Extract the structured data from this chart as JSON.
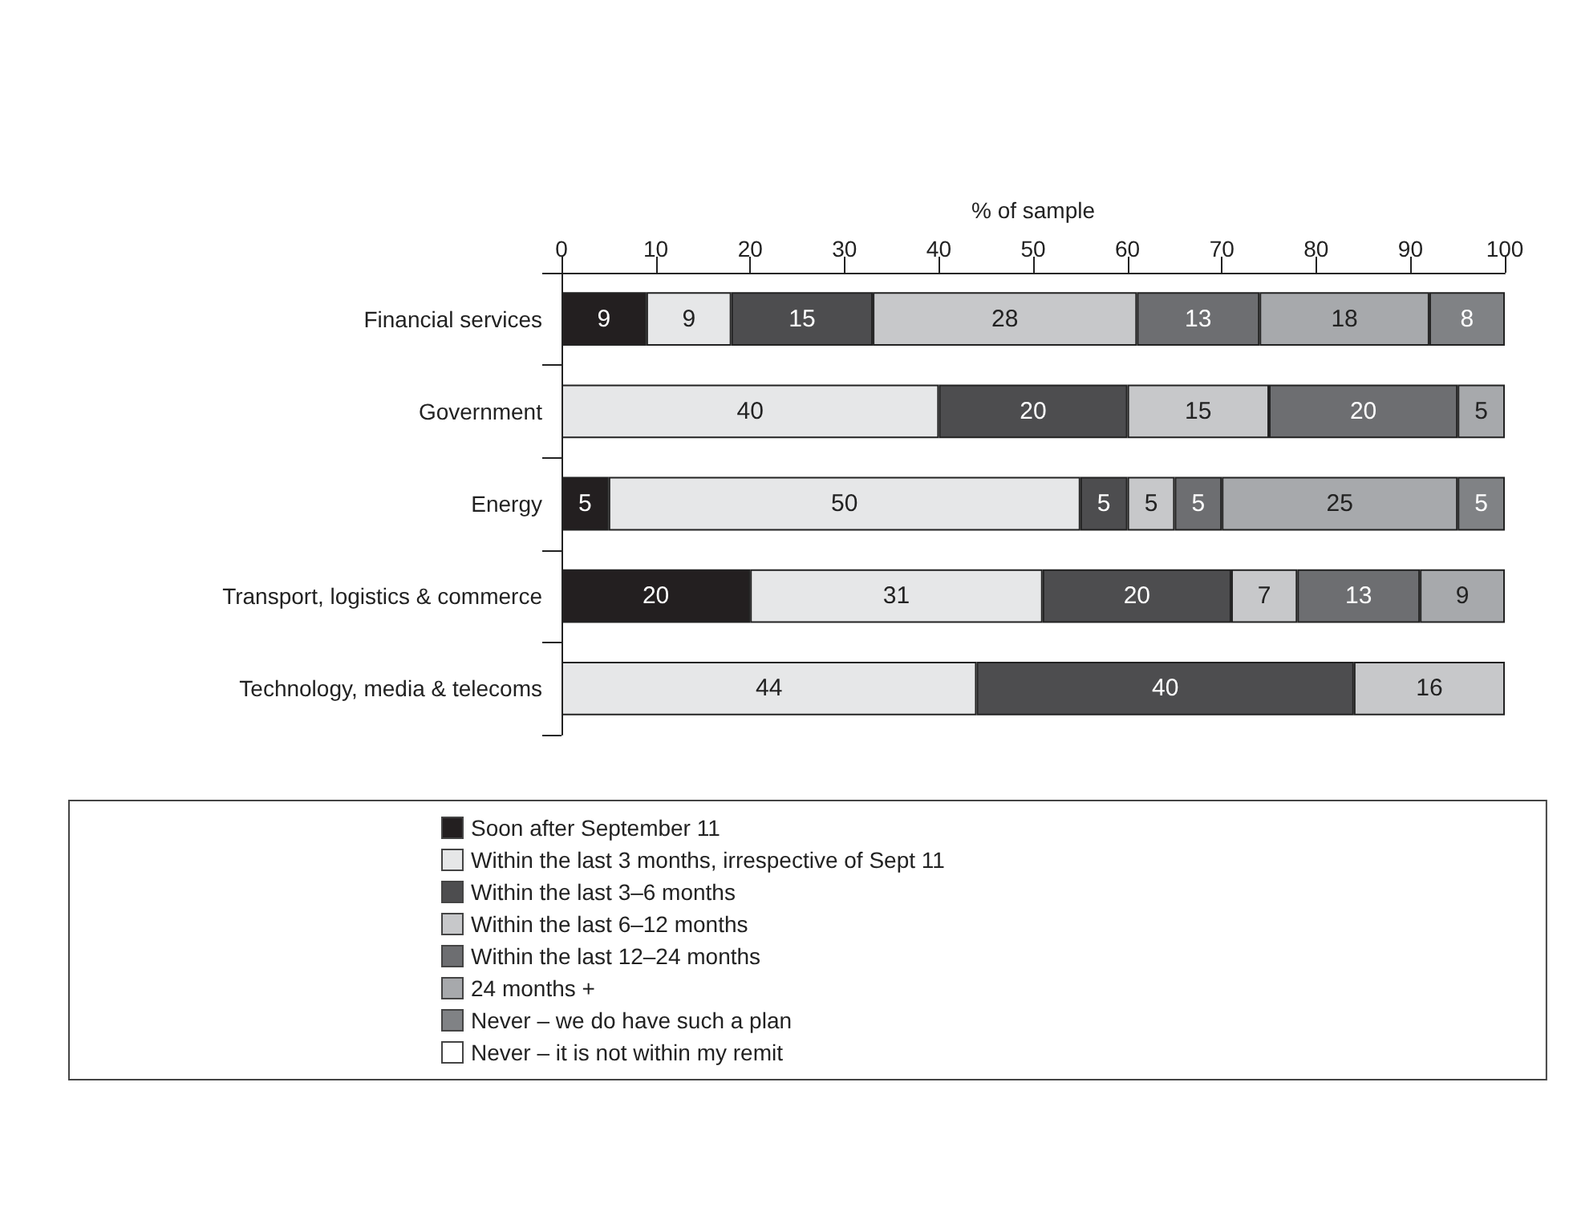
{
  "chart_data": {
    "type": "bar",
    "orientation": "horizontal",
    "stacked": true,
    "data_labels": true,
    "grid": false,
    "legend": "bottom",
    "xlabel": "% of sample",
    "xlim": [
      0,
      100
    ],
    "xticks": [
      0,
      10,
      20,
      30,
      40,
      50,
      60,
      70,
      80,
      90,
      100
    ],
    "categories": [
      "Financial services",
      "Government",
      "Energy",
      "Transport, logistics & commerce",
      "Technology, media & telecoms"
    ],
    "series": [
      {
        "name": "Soon after September 11",
        "color": "#231f20",
        "values": [
          9,
          null,
          5,
          20,
          null
        ]
      },
      {
        "name": "Within the last 3 months, irrespective of Sept 11",
        "color": "#e6e7e8",
        "values": [
          9,
          40,
          50,
          31,
          44
        ]
      },
      {
        "name": "Within the last 3–6 months",
        "color": "#4d4d4f",
        "values": [
          15,
          20,
          5,
          20,
          40
        ]
      },
      {
        "name": "Within the last 6–12 months",
        "color": "#c7c8ca",
        "values": [
          28,
          15,
          5,
          7,
          16
        ]
      },
      {
        "name": "Within the last 12–24 months",
        "color": "#6d6e71",
        "values": [
          13,
          20,
          5,
          13,
          null
        ]
      },
      {
        "name": "24 months +",
        "color": "#a7a9ac",
        "values": [
          18,
          5,
          25,
          9,
          null
        ]
      },
      {
        "name": "Never – we do have such a plan",
        "color": "#808285",
        "values": [
          8,
          null,
          5,
          null,
          null
        ]
      },
      {
        "name": "Never – it is not within my remit",
        "color": "#ffffff",
        "values": [
          null,
          null,
          null,
          null,
          null
        ]
      }
    ]
  }
}
